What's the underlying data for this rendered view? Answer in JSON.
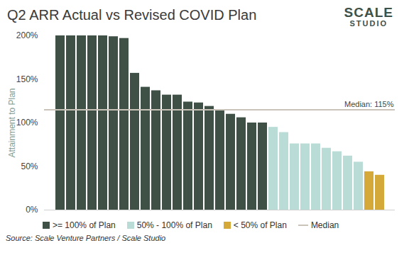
{
  "chart_data": {
    "type": "bar",
    "title": "Q2 ARR Actual vs Revised COVID Plan",
    "logo": [
      "SCALE",
      "STUDIO"
    ],
    "y_label": "Attainment to Plan",
    "source": "Source: Scale Venture Partners / Scale Studio",
    "categories": [
      null,
      null,
      null,
      null,
      null,
      null,
      null,
      null,
      null,
      null,
      null,
      null,
      null,
      null,
      null,
      null,
      null,
      null,
      null,
      null,
      null,
      null,
      null,
      null,
      null,
      null,
      null,
      null,
      null,
      null,
      null
    ],
    "series": [
      {
        "name": ">= 100% of Plan",
        "color": "#3f5147",
        "type": "bar",
        "values": [
          200,
          200,
          200,
          200,
          200,
          199,
          197,
          157,
          141,
          137,
          132,
          132,
          124,
          123,
          119,
          115,
          110,
          106,
          100,
          100,
          null,
          null,
          null,
          null,
          null,
          null,
          null,
          null,
          null,
          null,
          null
        ]
      },
      {
        "name": "50% - 100% of Plan",
        "color": "#b9dcd6",
        "type": "bar",
        "values": [
          null,
          null,
          null,
          null,
          null,
          null,
          null,
          null,
          null,
          null,
          null,
          null,
          null,
          null,
          null,
          null,
          null,
          null,
          null,
          null,
          95,
          89,
          76,
          76,
          76,
          71,
          67,
          62,
          55,
          null,
          null
        ]
      },
      {
        "name": "< 50% of Plan",
        "color": "#d4a93a",
        "type": "bar",
        "values": [
          null,
          null,
          null,
          null,
          null,
          null,
          null,
          null,
          null,
          null,
          null,
          null,
          null,
          null,
          null,
          null,
          null,
          null,
          null,
          null,
          null,
          null,
          null,
          null,
          null,
          null,
          null,
          null,
          null,
          44,
          40
        ]
      },
      {
        "name": "Median",
        "color": "#c9c3ba",
        "type": "line",
        "values": [
          115,
          115,
          115,
          115,
          115,
          115,
          115,
          115,
          115,
          115,
          115,
          115,
          115,
          115,
          115,
          115,
          115,
          115,
          115,
          115,
          115,
          115,
          115,
          115,
          115,
          115,
          115,
          115,
          115,
          115,
          115
        ]
      }
    ],
    "annotations": [
      {
        "text": "Median: 115%",
        "value": 115
      }
    ],
    "ylim": [
      0,
      200
    ],
    "yticks": [
      {
        "value": 0,
        "label": "0%"
      },
      {
        "value": 50,
        "label": "50%"
      },
      {
        "value": 100,
        "label": "100%"
      },
      {
        "value": 150,
        "label": "150%"
      },
      {
        "value": 200,
        "label": "200%"
      }
    ],
    "grid": false,
    "legend": "bottom",
    "tick_labels": "y"
  }
}
